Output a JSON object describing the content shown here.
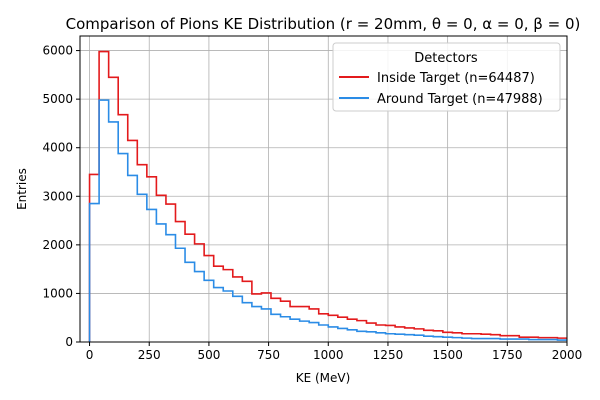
{
  "chart_data": {
    "type": "step",
    "title": "Comparison of Pions KE Distribution (r = 20mm, θ = 0, α = 0, β = 0)",
    "xlabel": "KE (MeV)",
    "ylabel": "Entries",
    "xlim": [
      -40,
      2000
    ],
    "ylim": [
      0,
      6300
    ],
    "grid": true,
    "x_ticks": [
      0,
      250,
      500,
      750,
      1000,
      1250,
      1500,
      1750,
      2000
    ],
    "y_ticks": [
      0,
      1000,
      2000,
      3000,
      4000,
      5000,
      6000
    ],
    "legend": {
      "title": "Detectors",
      "position": "top-right"
    },
    "bin_width": 40,
    "bin_start": 0,
    "series": [
      {
        "name": "Inside Target (n=64487)",
        "color": "#e31a1c",
        "values": [
          3450,
          5980,
          5450,
          4680,
          4150,
          3650,
          3400,
          3020,
          2840,
          2480,
          2220,
          2020,
          1780,
          1560,
          1490,
          1340,
          1250,
          990,
          1010,
          900,
          840,
          730,
          730,
          680,
          580,
          550,
          510,
          470,
          440,
          390,
          350,
          340,
          310,
          290,
          270,
          240,
          230,
          200,
          190,
          170,
          170,
          160,
          150,
          130,
          130,
          100,
          100,
          90,
          90,
          80
        ]
      },
      {
        "name": "Around Target (n=47988)",
        "color": "#2b8ce6",
        "values": [
          2850,
          4980,
          4530,
          3880,
          3430,
          3040,
          2730,
          2430,
          2210,
          1930,
          1640,
          1450,
          1270,
          1120,
          1050,
          940,
          810,
          730,
          680,
          570,
          520,
          470,
          430,
          400,
          350,
          310,
          280,
          250,
          220,
          210,
          190,
          170,
          160,
          150,
          140,
          120,
          110,
          100,
          90,
          80,
          70,
          70,
          70,
          60,
          60,
          60,
          50,
          50,
          50,
          40
        ]
      }
    ]
  }
}
